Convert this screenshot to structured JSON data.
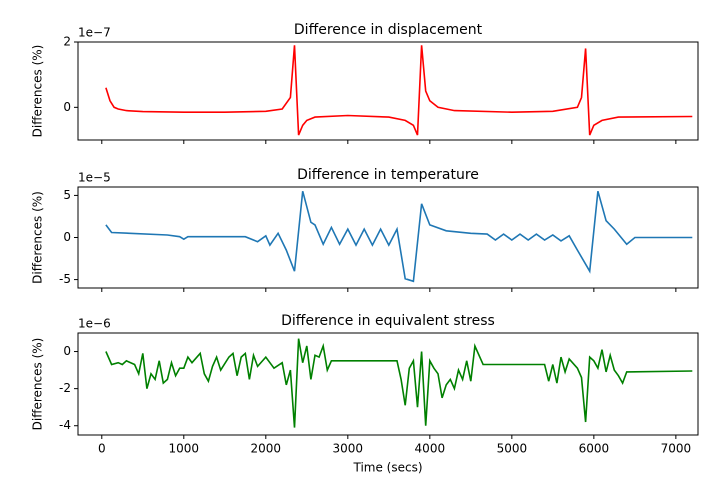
{
  "chart_data": [
    {
      "type": "line",
      "title": "Difference in displacement",
      "y_label": "Differences (%)",
      "offset_label": "1e−7",
      "color": "red",
      "x": [
        50,
        100,
        150,
        200,
        300,
        500,
        1000,
        1500,
        2000,
        2200,
        2300,
        2350,
        2400,
        2450,
        2500,
        2600,
        3000,
        3500,
        3700,
        3800,
        3850,
        3900,
        3950,
        4000,
        4100,
        4300,
        5000,
        5500,
        5800,
        5850,
        5900,
        5950,
        6000,
        6100,
        6300,
        7200
      ],
      "values": [
        0.6,
        0.2,
        0.0,
        -0.05,
        -0.1,
        -0.13,
        -0.15,
        -0.15,
        -0.12,
        -0.05,
        0.3,
        1.9,
        -0.85,
        -0.55,
        -0.4,
        -0.3,
        -0.25,
        -0.3,
        -0.4,
        -0.55,
        -0.85,
        1.9,
        0.5,
        0.2,
        0.0,
        -0.1,
        -0.15,
        -0.12,
        0.0,
        0.3,
        1.8,
        -0.85,
        -0.55,
        -0.4,
        -0.3,
        -0.28
      ],
      "xlim": [
        -290,
        7270
      ],
      "xticks": [
        0,
        1000,
        2000,
        3000,
        4000,
        5000,
        6000,
        7000
      ],
      "show_xtick_labels": false,
      "ylim": [
        -1.0,
        2.0
      ],
      "yticks": [
        0,
        2
      ]
    },
    {
      "type": "line",
      "title": "Difference in temperature",
      "y_label": "Differences (%)",
      "offset_label": "1e−5",
      "color": "#1f77b4",
      "x": [
        50,
        120,
        800,
        950,
        1000,
        1050,
        1750,
        1900,
        2000,
        2050,
        2150,
        2250,
        2350,
        2450,
        2550,
        2600,
        2700,
        2800,
        2900,
        3000,
        3100,
        3200,
        3300,
        3400,
        3500,
        3600,
        3700,
        3800,
        3900,
        4000,
        4200,
        4500,
        4700,
        4800,
        4900,
        5000,
        5100,
        5200,
        5300,
        5400,
        5500,
        5600,
        5700,
        5800,
        5950,
        6050,
        6150,
        6250,
        6400,
        6500,
        7200
      ],
      "values": [
        1.5,
        0.6,
        0.3,
        0.1,
        -0.2,
        0.1,
        0.1,
        -0.5,
        0.2,
        -0.9,
        0.5,
        -1.5,
        -4,
        5.5,
        1.8,
        1.5,
        -0.8,
        1.2,
        -0.8,
        1.0,
        -0.9,
        1.0,
        -0.9,
        1.0,
        -0.9,
        1.0,
        -4.9,
        -5.2,
        4.0,
        1.5,
        0.8,
        0.5,
        0.4,
        -0.3,
        0.4,
        -0.3,
        0.4,
        -0.3,
        0.4,
        -0.3,
        0.3,
        -0.4,
        0.2,
        -1.5,
        -4,
        5.5,
        2.0,
        1.0,
        -0.8,
        0.0,
        0.0
      ],
      "xlim": [
        -290,
        7270
      ],
      "xticks": [
        0,
        1000,
        2000,
        3000,
        4000,
        5000,
        6000,
        7000
      ],
      "show_xtick_labels": false,
      "ylim": [
        -6,
        6
      ],
      "yticks": [
        -5,
        0,
        5
      ]
    },
    {
      "type": "line",
      "title": "Difference in equivalent stress",
      "y_label": "Differences (%)",
      "offset_label": "1e−6",
      "x_label": "Time (secs)",
      "color": "green",
      "x": [
        50,
        120,
        200,
        250,
        300,
        400,
        450,
        500,
        550,
        600,
        650,
        700,
        750,
        800,
        850,
        900,
        950,
        1000,
        1050,
        1100,
        1200,
        1250,
        1300,
        1350,
        1400,
        1450,
        1550,
        1600,
        1650,
        1700,
        1750,
        1800,
        1850,
        1900,
        2000,
        2100,
        2200,
        2250,
        2300,
        2350,
        2400,
        2450,
        2500,
        2550,
        2600,
        2650,
        2700,
        2750,
        2800,
        2900,
        3600,
        3650,
        3700,
        3750,
        3800,
        3850,
        3900,
        3950,
        4000,
        4050,
        4100,
        4150,
        4200,
        4250,
        4300,
        4350,
        4400,
        4450,
        4500,
        4550,
        4650,
        5400,
        5450,
        5500,
        5550,
        5600,
        5650,
        5700,
        5800,
        5850,
        5900,
        5950,
        6000,
        6050,
        6100,
        6150,
        6200,
        6250,
        6300,
        6350,
        6400,
        7200
      ],
      "values": [
        0,
        -0.7,
        -0.6,
        -0.7,
        -0.5,
        -0.7,
        -1.2,
        -0.1,
        -2.0,
        -1.2,
        -1.5,
        -0.5,
        -1.7,
        -1.5,
        -0.6,
        -1.3,
        -0.9,
        -0.9,
        -0.3,
        -0.6,
        -0.1,
        -1.2,
        -1.6,
        -0.8,
        -0.3,
        -1.0,
        -0.3,
        -0.1,
        -1.3,
        -0.3,
        -0.1,
        -1.5,
        -0.2,
        -0.8,
        -0.3,
        -0.9,
        -0.6,
        -1.8,
        -1.0,
        -4.1,
        0.7,
        -0.6,
        0.3,
        -1.5,
        -0.2,
        -0.3,
        0.3,
        -1.0,
        -0.5,
        -0.5,
        -0.5,
        -1.5,
        -2.9,
        -0.9,
        -0.5,
        -3.0,
        0.0,
        -4.0,
        -0.5,
        -0.9,
        -1.2,
        -2.5,
        -1.8,
        -1.5,
        -2.0,
        -1.0,
        -1.5,
        -0.5,
        -1.6,
        0.3,
        -0.7,
        -0.7,
        -1.6,
        -0.7,
        -1.7,
        -0.3,
        -1.1,
        -0.4,
        -0.9,
        -1.4,
        -3.8,
        -0.3,
        -0.5,
        -0.9,
        0.1,
        -1.1,
        -0.2,
        -1.0,
        -1.3,
        -1.7,
        -1.1,
        -1.05
      ],
      "xlim": [
        -290,
        7270
      ],
      "xticks": [
        0,
        1000,
        2000,
        3000,
        4000,
        5000,
        6000,
        7000
      ],
      "show_xtick_labels": true,
      "ylim": [
        -4.5,
        1.0
      ],
      "yticks": [
        -4,
        -2,
        0
      ]
    }
  ]
}
